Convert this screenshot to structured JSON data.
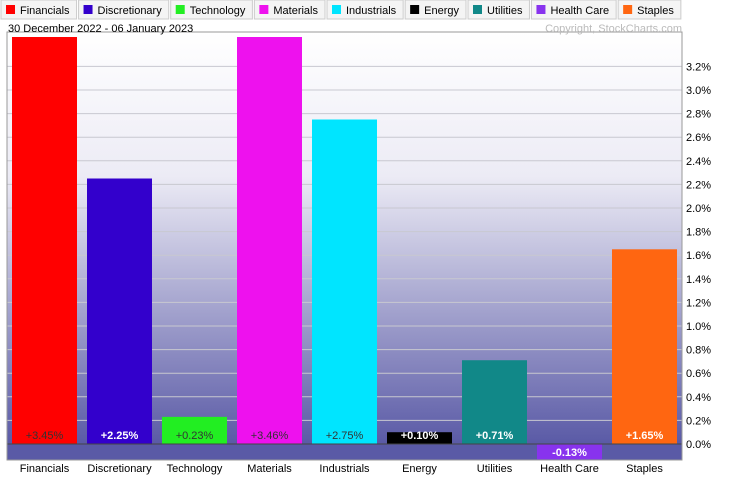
{
  "chart_data": {
    "type": "bar",
    "date_range": "30 December 2022 - 06 January 2023",
    "copyright": "Copyright, StockCharts.com",
    "categories": [
      "Financials",
      "Discretionary",
      "Technology",
      "Materials",
      "Industrials",
      "Energy",
      "Utilities",
      "Health Care",
      "Staples"
    ],
    "values": [
      3.45,
      2.25,
      0.23,
      3.46,
      2.75,
      0.1,
      0.71,
      -0.13,
      1.65
    ],
    "labels": [
      "+3.45%",
      "+2.25%",
      "+0.23%",
      "+3.46%",
      "+2.75%",
      "+0.10%",
      "+0.71%",
      "-0.13%",
      "+1.65%"
    ],
    "colors": [
      "#ff0000",
      "#3300cc",
      "#22ee22",
      "#ee11ee",
      "#00e5ff",
      "#000000",
      "#118888",
      "#8833ee",
      "#ff6611"
    ],
    "label_colors": [
      "#333333",
      "#ffffff",
      "#333333",
      "#333333",
      "#333333",
      "#ffffff",
      "#ffffff",
      "#ffffff",
      "#ffffff"
    ],
    "ylim": [
      0,
      3.4
    ],
    "yticks": [
      "0.0%",
      "0.2%",
      "0.4%",
      "0.6%",
      "0.8%",
      "1.0%",
      "1.2%",
      "1.4%",
      "1.6%",
      "1.8%",
      "2.0%",
      "2.2%",
      "2.4%",
      "2.6%",
      "2.8%",
      "3.0%",
      "3.2%"
    ],
    "ytick_values": [
      0,
      0.2,
      0.4,
      0.6,
      0.8,
      1.0,
      1.2,
      1.4,
      1.6,
      1.8,
      2.0,
      2.2,
      2.4,
      2.6,
      2.8,
      3.0,
      3.2
    ],
    "grid": true,
    "legend": "top"
  }
}
